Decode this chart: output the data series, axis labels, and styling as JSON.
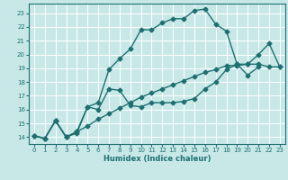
{
  "xlabel": "Humidex (Indice chaleur)",
  "xlim": [
    -0.5,
    23.5
  ],
  "ylim": [
    13.5,
    23.7
  ],
  "yticks": [
    14,
    15,
    16,
    17,
    18,
    19,
    20,
    21,
    22,
    23
  ],
  "xticks": [
    0,
    1,
    2,
    3,
    4,
    5,
    6,
    7,
    8,
    9,
    10,
    11,
    12,
    13,
    14,
    15,
    16,
    17,
    18,
    19,
    20,
    21,
    22,
    23
  ],
  "bg_color": "#c8e8e8",
  "grid_color": "#ffffff",
  "line_color": "#1e7070",
  "line1_x": [
    0,
    1,
    2,
    3,
    4,
    5,
    6,
    7,
    8,
    9,
    10,
    11,
    12,
    13,
    14,
    15,
    16,
    17,
    18,
    19,
    20,
    21
  ],
  "line1_y": [
    14.1,
    13.9,
    15.2,
    14.0,
    14.3,
    16.2,
    16.5,
    18.9,
    19.7,
    20.4,
    21.8,
    21.8,
    22.3,
    22.6,
    22.6,
    23.2,
    23.3,
    22.2,
    21.7,
    19.3,
    18.5,
    19.1
  ],
  "line2_x": [
    0,
    1,
    2,
    3,
    4,
    5,
    6,
    7,
    8,
    9,
    10,
    11,
    12,
    13,
    14,
    15,
    16,
    17,
    18,
    19,
    20,
    21,
    22,
    23
  ],
  "line2_y": [
    14.1,
    13.9,
    15.2,
    14.0,
    14.4,
    14.8,
    15.3,
    15.7,
    16.1,
    16.5,
    16.9,
    17.2,
    17.5,
    17.8,
    18.1,
    18.4,
    18.7,
    18.9,
    19.2,
    19.2,
    19.3,
    19.3,
    19.1,
    19.1
  ],
  "line3_x": [
    0,
    1,
    2,
    3,
    4,
    5,
    6,
    7,
    8,
    9,
    10,
    11,
    12,
    13,
    14,
    15,
    16,
    17,
    18,
    19,
    20,
    21,
    22,
    23
  ],
  "line3_y": [
    14.1,
    13.9,
    15.2,
    14.0,
    14.4,
    16.2,
    16.0,
    17.5,
    17.4,
    16.3,
    16.2,
    16.5,
    16.5,
    16.5,
    16.6,
    16.8,
    17.5,
    18.0,
    18.9,
    19.3,
    19.3,
    20.0,
    20.8,
    19.1
  ],
  "markersize": 2.5,
  "linewidth": 1.0
}
